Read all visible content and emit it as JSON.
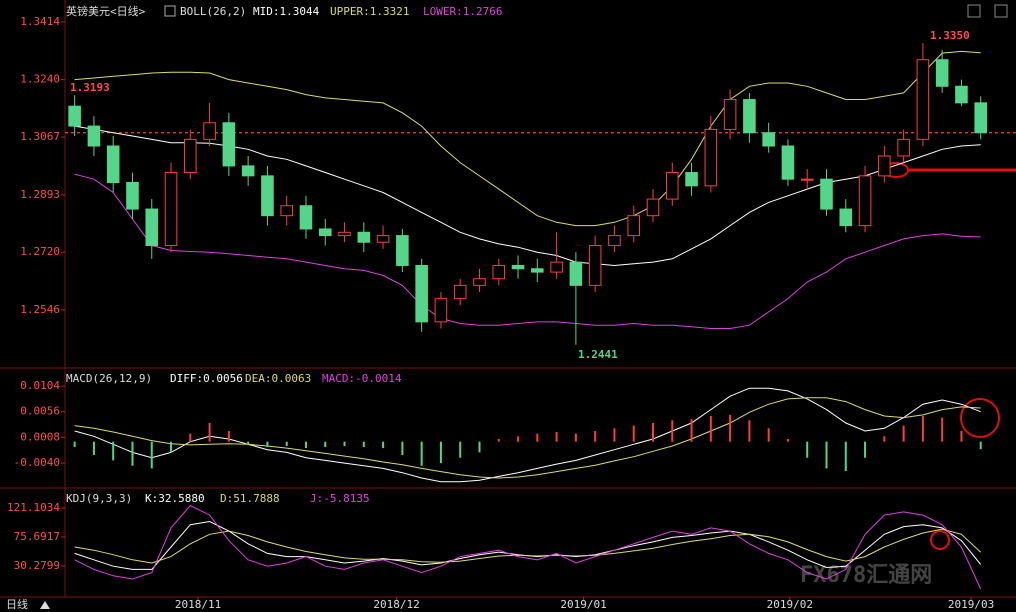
{
  "chart_data": [
    {
      "type": "candlestick",
      "title": "英镑美元<日线>",
      "indicator": "BOLL(26,2)",
      "xlim": [
        -0.5,
        48
      ],
      "ylim": [
        1.238,
        1.348
      ],
      "yticks": [
        1.3414,
        {
          "value": 1.324,
          "label": "1.3240"
        },
        1.3067,
        1.2893,
        {
          "value": 1.272,
          "label": "1.2720"
        },
        1.2546
      ],
      "up_color": "#ff3c3c",
      "down_color": "#54d68a",
      "open": [
        1.316,
        1.31,
        1.304,
        1.293,
        1.285,
        1.274,
        1.296,
        1.306,
        1.311,
        1.298,
        1.295,
        1.283,
        1.286,
        1.279,
        1.277,
        1.278,
        1.275,
        1.277,
        1.268,
        1.251,
        1.258,
        1.262,
        1.264,
        1.268,
        1.267,
        1.266,
        1.269,
        1.262,
        1.274,
        1.277,
        1.283,
        1.288,
        1.296,
        1.292,
        1.309,
        1.318,
        1.308,
        1.304,
        1.294,
        1.294,
        1.285,
        1.28,
        1.295,
        1.301,
        1.306,
        1.33,
        1.322,
        1.317
      ],
      "high": [
        1.3193,
        1.313,
        1.307,
        1.296,
        1.288,
        1.299,
        1.309,
        1.317,
        1.314,
        1.301,
        1.298,
        1.289,
        1.289,
        1.282,
        1.281,
        1.281,
        1.28,
        1.279,
        1.27,
        1.26,
        1.264,
        1.267,
        1.27,
        1.271,
        1.27,
        1.278,
        1.272,
        1.277,
        1.28,
        1.286,
        1.291,
        1.299,
        1.299,
        1.313,
        1.321,
        1.32,
        1.311,
        1.306,
        1.297,
        1.297,
        1.288,
        1.298,
        1.304,
        1.309,
        1.335,
        1.333,
        1.324,
        1.319
      ],
      "low": [
        1.307,
        1.301,
        1.29,
        1.282,
        1.27,
        1.272,
        1.294,
        1.304,
        1.295,
        1.292,
        1.28,
        1.28,
        1.276,
        1.274,
        1.275,
        1.272,
        1.273,
        1.266,
        1.248,
        1.249,
        1.256,
        1.26,
        1.262,
        1.264,
        1.263,
        1.264,
        1.2441,
        1.26,
        1.272,
        1.275,
        1.281,
        1.286,
        1.289,
        1.29,
        1.306,
        1.305,
        1.302,
        1.292,
        1.291,
        1.283,
        1.278,
        1.278,
        1.293,
        1.299,
        1.304,
        1.32,
        1.316,
        1.306
      ],
      "close": [
        1.31,
        1.304,
        1.293,
        1.285,
        1.274,
        1.296,
        1.306,
        1.311,
        1.298,
        1.295,
        1.283,
        1.286,
        1.279,
        1.277,
        1.278,
        1.275,
        1.277,
        1.268,
        1.251,
        1.258,
        1.262,
        1.264,
        1.268,
        1.267,
        1.266,
        1.269,
        1.262,
        1.274,
        1.277,
        1.283,
        1.288,
        1.296,
        1.292,
        1.309,
        1.318,
        1.308,
        1.304,
        1.294,
        1.294,
        1.285,
        1.28,
        1.295,
        1.301,
        1.306,
        1.33,
        1.322,
        1.317,
        1.308
      ],
      "series": [
        {
          "name": "MID:1.3044",
          "color": "#ffffff",
          "values": [
            1.31,
            1.309,
            1.308,
            1.307,
            1.306,
            1.305,
            1.305,
            1.3048,
            1.304,
            1.303,
            1.301,
            1.3,
            1.298,
            1.296,
            1.294,
            1.292,
            1.29,
            1.287,
            1.284,
            1.281,
            1.278,
            1.276,
            1.2745,
            1.2735,
            1.272,
            1.271,
            1.269,
            1.2685,
            1.268,
            1.2685,
            1.269,
            1.27,
            1.273,
            1.276,
            1.28,
            1.284,
            1.287,
            1.289,
            1.291,
            1.293,
            1.294,
            1.295,
            1.297,
            1.299,
            1.301,
            1.303,
            1.304,
            1.3044
          ]
        },
        {
          "name": "UPPER:1.3321",
          "color": "#dcdc64",
          "values": [
            1.324,
            1.3245,
            1.325,
            1.3255,
            1.326,
            1.3262,
            1.3262,
            1.326,
            1.324,
            1.323,
            1.322,
            1.321,
            1.3195,
            1.3185,
            1.318,
            1.3175,
            1.317,
            1.314,
            1.31,
            1.304,
            1.299,
            1.295,
            1.291,
            1.287,
            1.283,
            1.281,
            1.28,
            1.28,
            1.281,
            1.283,
            1.286,
            1.292,
            1.3,
            1.31,
            1.318,
            1.322,
            1.323,
            1.323,
            1.322,
            1.32,
            1.318,
            1.318,
            1.319,
            1.32,
            1.326,
            1.332,
            1.3325,
            1.3321
          ]
        },
        {
          "name": "LOWER:1.2766",
          "color": "#e040e0",
          "values": [
            1.2955,
            1.294,
            1.29,
            1.282,
            1.274,
            1.2725,
            1.2722,
            1.272,
            1.2715,
            1.271,
            1.2705,
            1.27,
            1.269,
            1.268,
            1.267,
            1.2665,
            1.265,
            1.262,
            1.256,
            1.252,
            1.2505,
            1.25,
            1.25,
            1.2505,
            1.251,
            1.251,
            1.2505,
            1.25,
            1.25,
            1.2505,
            1.25,
            1.25,
            1.2495,
            1.249,
            1.249,
            1.25,
            1.254,
            1.258,
            1.263,
            1.266,
            1.27,
            1.272,
            1.274,
            1.276,
            1.277,
            1.2775,
            1.2768,
            1.2766
          ]
        }
      ],
      "price_line": 1.308,
      "price_line_color": "#ff6a3c",
      "annotations": [
        {
          "text": "1.3193",
          "color": "#ff4d4d"
        },
        {
          "text": "1.3350",
          "color": "#ff4d4d"
        },
        {
          "text": "1.2441",
          "color": "#54d68a"
        }
      ]
    },
    {
      "type": "macd",
      "title": "MACD(26,12,9)",
      "xlim": [
        -0.5,
        48
      ],
      "ylim": [
        -0.0081,
        0.0134
      ],
      "yticks": [
        0.0104,
        0.0056,
        0.0008,
        {
          "value": -0.004,
          "label": "-0.0040"
        }
      ],
      "bar_up_color": "#ff3c3c",
      "bar_down_color": "#54d68a",
      "series": [
        {
          "name": "DIFF:0.0056",
          "color": "#ffffff",
          "style": "line",
          "values": [
            0.002,
            0.001,
            -0.0005,
            -0.002,
            -0.003,
            -0.002,
            0,
            0.001,
            0.0005,
            -0.0005,
            -0.0015,
            -0.002,
            -0.003,
            -0.0035,
            -0.004,
            -0.0045,
            -0.005,
            -0.0058,
            -0.0068,
            -0.0075,
            -0.0075,
            -0.0072,
            -0.0065,
            -0.0058,
            -0.005,
            -0.0042,
            -0.0035,
            -0.0025,
            -0.0015,
            -0.0005,
            0.0005,
            0.002,
            0.0035,
            0.006,
            0.0085,
            0.01,
            0.01,
            0.0095,
            0.008,
            0.006,
            0.0035,
            0.002,
            0.0025,
            0.0045,
            0.007,
            0.0078,
            0.007,
            0.0056
          ]
        },
        {
          "name": "DEA:0.0063",
          "color": "#dcdc64",
          "style": "line",
          "values": [
            0.003,
            0.0025,
            0.0018,
            0.001,
            0.0002,
            -0.0004,
            -0.0006,
            -0.0005,
            -0.0004,
            -0.0005,
            -0.0008,
            -0.0012,
            -0.0017,
            -0.0022,
            -0.0027,
            -0.0032,
            -0.0038,
            -0.0043,
            -0.005,
            -0.0056,
            -0.0062,
            -0.0066,
            -0.0068,
            -0.0066,
            -0.0062,
            -0.0056,
            -0.005,
            -0.0044,
            -0.0036,
            -0.0028,
            -0.0018,
            -0.0008,
            0.0005,
            0.002,
            0.0035,
            0.0055,
            0.007,
            0.008,
            0.0082,
            0.0082,
            0.0075,
            0.006,
            0.0048,
            0.0045,
            0.005,
            0.006,
            0.0065,
            0.0063
          ]
        },
        {
          "name": "MACD:-0.0014",
          "color": "#e040e0",
          "style": "histogram",
          "values": [
            -0.001,
            -0.0025,
            -0.0035,
            -0.0045,
            -0.005,
            -0.002,
            0.0015,
            0.0035,
            0.002,
            -0.0005,
            -0.001,
            -0.0008,
            -0.0012,
            -0.001,
            -0.0008,
            -0.001,
            -0.0012,
            -0.0025,
            -0.0045,
            -0.004,
            -0.003,
            -0.002,
            0.0005,
            0.001,
            0.0015,
            0.0018,
            0.0015,
            0.002,
            0.0025,
            0.003,
            0.0035,
            0.004,
            0.0042,
            0.0048,
            0.005,
            0.004,
            0.0025,
            0.0005,
            -0.003,
            -0.005,
            -0.0055,
            -0.003,
            0.001,
            0.003,
            0.0048,
            0.0045,
            0.002,
            -0.0014
          ]
        }
      ]
    },
    {
      "type": "line",
      "title": "KDJ(9,3,3)",
      "xlim": [
        -0.5,
        48
      ],
      "ylim": [
        -16.7,
        149.3
      ],
      "yticks": [
        121.1034,
        75.6917,
        30.2799
      ],
      "xticks": [
        {
          "value": 6.4,
          "label": "2018/11"
        },
        {
          "value": 16.7,
          "label": "2018/12"
        },
        {
          "value": 26.4,
          "label": "2019/01"
        },
        {
          "value": 37.1,
          "label": "2019/02"
        },
        {
          "value": 46.5,
          "label": "2019/03"
        }
      ],
      "series": [
        {
          "name": "K:32.5880",
          "color": "#ffffff",
          "values": [
            50,
            40,
            30,
            25,
            25,
            60,
            95,
            100,
            85,
            65,
            50,
            45,
            45,
            40,
            35,
            38,
            42,
            38,
            32,
            35,
            42,
            48,
            52,
            48,
            45,
            48,
            45,
            48,
            55,
            62,
            68,
            75,
            78,
            82,
            85,
            80,
            68,
            55,
            40,
            28,
            30,
            55,
            80,
            92,
            95,
            90,
            70,
            32.588
          ]
        },
        {
          "name": "D:51.7888",
          "color": "#dcdc64",
          "values": [
            60,
            55,
            48,
            40,
            35,
            45,
            65,
            80,
            85,
            78,
            68,
            60,
            53,
            48,
            43,
            41,
            41,
            40,
            37,
            36,
            38,
            42,
            46,
            47,
            46,
            47,
            46,
            47,
            50,
            54,
            58,
            64,
            69,
            73,
            78,
            80,
            76,
            68,
            56,
            45,
            38,
            45,
            60,
            72,
            82,
            88,
            80,
            51.7888
          ]
        },
        {
          "name": "J:-5.8135",
          "color": "#e040e0",
          "values": [
            40,
            25,
            15,
            10,
            20,
            90,
            125,
            110,
            70,
            40,
            30,
            35,
            45,
            30,
            25,
            35,
            40,
            30,
            20,
            30,
            45,
            50,
            55,
            45,
            40,
            50,
            35,
            45,
            55,
            65,
            75,
            85,
            80,
            90,
            85,
            65,
            50,
            40,
            20,
            10,
            25,
            80,
            110,
            115,
            110,
            95,
            60,
            -5.8135
          ]
        }
      ]
    }
  ],
  "period_tab": "日线",
  "watermark": "FX678汇通网"
}
